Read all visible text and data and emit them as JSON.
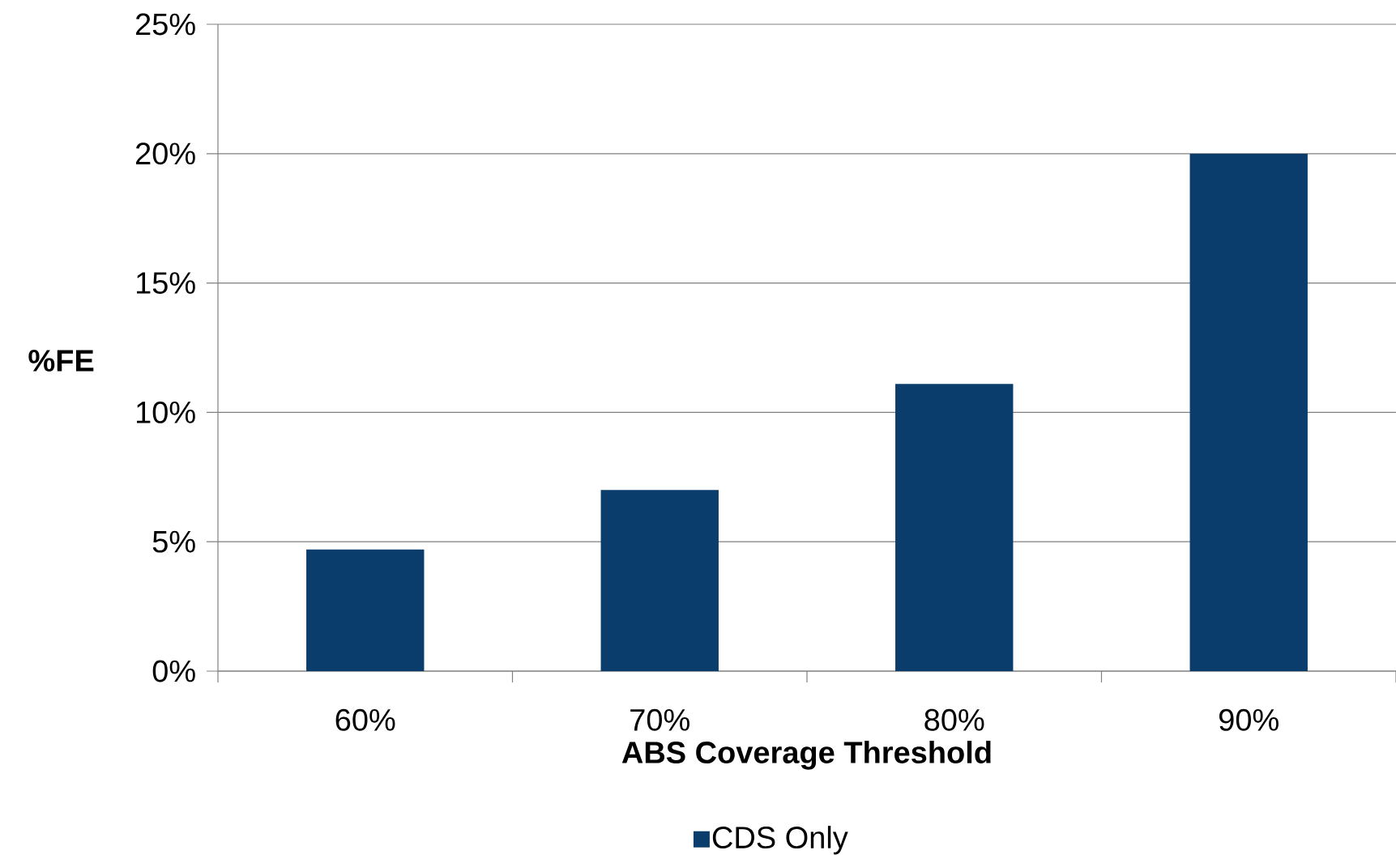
{
  "chart_data": {
    "type": "bar",
    "xlabel": "ABS Coverage Threshold",
    "ylabel": "%FE",
    "categories": [
      "60%",
      "70%",
      "80%",
      "90%"
    ],
    "series": [
      {
        "name": "CDS Only",
        "color": "#0a3d6b",
        "values": [
          4.7,
          7.0,
          11.1,
          20.0
        ]
      }
    ],
    "ylim": [
      0,
      25
    ],
    "yticks": [
      {
        "value": 0,
        "label": "0%"
      },
      {
        "value": 5,
        "label": "5%"
      },
      {
        "value": 10,
        "label": "10%"
      },
      {
        "value": 15,
        "label": "15%"
      },
      {
        "value": 20,
        "label": "20%"
      },
      {
        "value": 25,
        "label": "25%"
      }
    ],
    "grid": "y",
    "legend": "bottom"
  }
}
